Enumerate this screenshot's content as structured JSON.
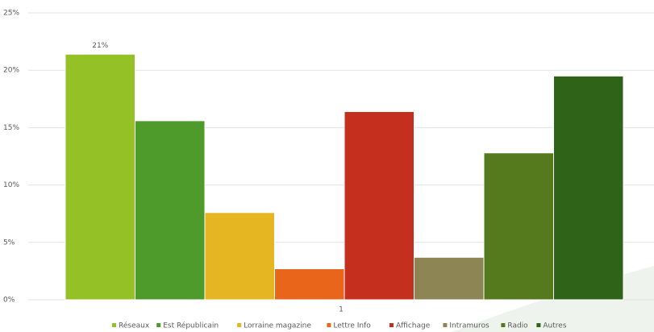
{
  "chart_data": {
    "type": "bar",
    "categories": [
      "1"
    ],
    "series": [
      {
        "name": "Réseaux",
        "color": "#93c126",
        "values": [
          21.4
        ],
        "value_labels": [
          "21%"
        ]
      },
      {
        "name": "Est Républicain",
        "color": "#4e9a2a",
        "values": [
          15.6
        ]
      },
      {
        "name": "Lorraine magazine",
        "color": "#e5b622",
        "values": [
          7.6
        ]
      },
      {
        "name": "Lettre Info",
        "color": "#e8651a",
        "values": [
          2.7
        ]
      },
      {
        "name": "Affichage",
        "color": "#c52f1d",
        "values": [
          16.4
        ]
      },
      {
        "name": "Intramuros",
        "color": "#8e8555",
        "values": [
          3.7
        ]
      },
      {
        "name": "Radio",
        "color": "#557a1e",
        "values": [
          12.8
        ]
      },
      {
        "name": "Autres",
        "color": "#2f6318",
        "values": [
          19.5
        ]
      }
    ],
    "ylim": [
      0,
      25
    ],
    "yticks": [
      {
        "value": 0,
        "label": "0%"
      },
      {
        "value": 5,
        "label": "5%"
      },
      {
        "value": 10,
        "label": "10%"
      },
      {
        "value": 15,
        "label": "15%"
      },
      {
        "value": 20,
        "label": "20%"
      },
      {
        "value": 25,
        "label": "25%"
      }
    ],
    "grid": true,
    "legend": "bottom"
  }
}
